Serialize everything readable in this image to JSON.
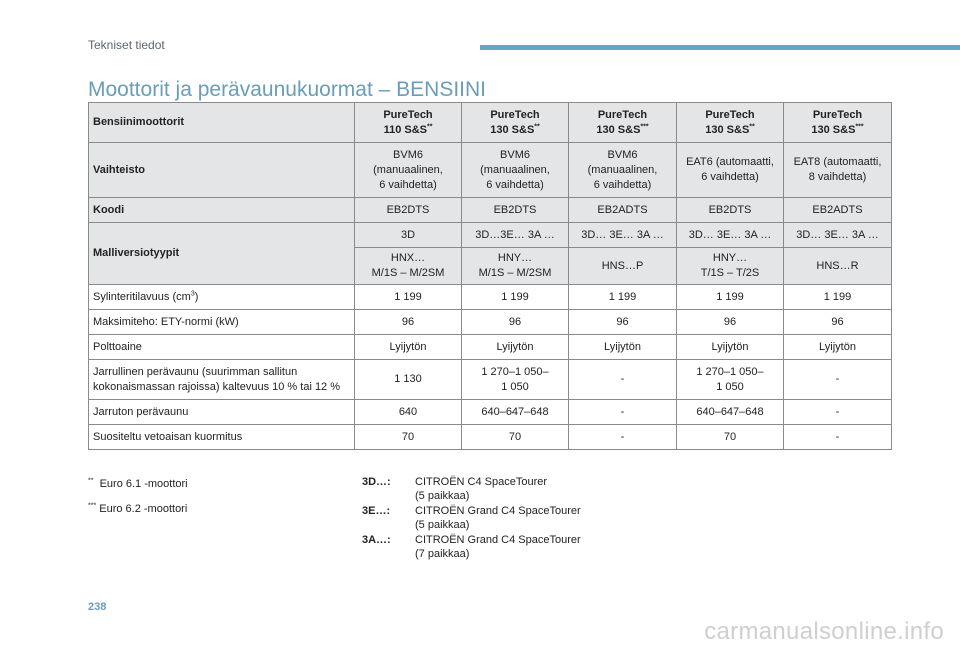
{
  "header": {
    "section": "Tekniset tiedot",
    "title": "Moottorit ja perävaunukuormat – BENSIINI"
  },
  "table": {
    "corner": "Bensiinimoottorit",
    "engines": [
      {
        "line1": "PureTech",
        "line2": "110 S&S",
        "sup": "**"
      },
      {
        "line1": "PureTech",
        "line2": "130 S&S",
        "sup": "**"
      },
      {
        "line1": "PureTech",
        "line2": "130 S&S",
        "sup": "***"
      },
      {
        "line1": "PureTech",
        "line2": "130 S&S",
        "sup": "**"
      },
      {
        "line1": "PureTech",
        "line2": "130 S&S",
        "sup": "***"
      }
    ],
    "gearbox": {
      "label": "Vaihteisto",
      "values": [
        {
          "l1": "BVM6",
          "l2": "(manuaalinen,",
          "l3": "6 vaihdetta)"
        },
        {
          "l1": "BVM6",
          "l2": "(manuaalinen,",
          "l3": "6 vaihdetta)"
        },
        {
          "l1": "BVM6",
          "l2": "(manuaalinen,",
          "l3": "6 vaihdetta)"
        },
        {
          "l1": "EAT6 (automaatti,",
          "l2": "6 vaihdetta)",
          "l3": ""
        },
        {
          "l1": "EAT8 (automaatti,",
          "l2": "8 vaihdetta)",
          "l3": ""
        }
      ]
    },
    "code": {
      "label": "Koodi",
      "values": [
        "EB2DTS",
        "EB2DTS",
        "EB2ADTS",
        "EB2DTS",
        "EB2ADTS"
      ]
    },
    "versions": {
      "label": "Malliversiotyypit",
      "row1": [
        "3D",
        "3D…3E… 3A …",
        "3D… 3E… 3A …",
        "3D… 3E… 3A …",
        "3D… 3E… 3A …"
      ],
      "row2": [
        {
          "l1": "HNX…",
          "l2": "M/1S – M/2SM"
        },
        {
          "l1": "HNY…",
          "l2": "M/1S – M/2SM"
        },
        {
          "l1": "HNS…P",
          "l2": ""
        },
        {
          "l1": "HNY…",
          "l2": "T/1S – T/2S"
        },
        {
          "l1": "HNS…R",
          "l2": ""
        }
      ]
    },
    "displacement": {
      "label": "Sylinteritilavuus (cm",
      "label_sup": "3",
      "label_end": ")",
      "values": [
        "1 199",
        "1 199",
        "1 199",
        "1 199",
        "1 199"
      ]
    },
    "power": {
      "label": "Maksimiteho: ETY-normi (kW)",
      "values": [
        "96",
        "96",
        "96",
        "96",
        "96"
      ]
    },
    "fuel": {
      "label": "Polttoaine",
      "values": [
        "Lyijytön",
        "Lyijytön",
        "Lyijytön",
        "Lyijytön",
        "Lyijytön"
      ]
    },
    "braked": {
      "label1": "Jarrullinen perävaunu (suurimman sallitun",
      "label2": "kokonaismassan rajoissa) kaltevuus 10 % tai 12 %",
      "values": [
        {
          "l1": "1 130",
          "l2": ""
        },
        {
          "l1": "1 270–1 050–",
          "l2": "1 050"
        },
        {
          "l1": "-",
          "l2": ""
        },
        {
          "l1": "1 270–1 050–",
          "l2": "1 050"
        },
        {
          "l1": "-",
          "l2": ""
        }
      ]
    },
    "unbraked": {
      "label": "Jarruton perävaunu",
      "values": [
        "640",
        "640–647–648",
        "-",
        "640–647–648",
        "-"
      ]
    },
    "nose": {
      "label": "Suositeltu vetoaisan kuormitus",
      "values": [
        "70",
        "70",
        "-",
        "70",
        "-"
      ]
    }
  },
  "footnotes": [
    {
      "mark": "**",
      "text": "Euro 6.1 -moottori"
    },
    {
      "mark": "***",
      "text": "Euro 6.2 -moottori"
    }
  ],
  "codes": [
    {
      "key": "3D…:",
      "line1": "CITROËN C4 SpaceTourer",
      "line2": "(5 paikkaa)"
    },
    {
      "key": "3E…:",
      "line1": "CITROËN Grand C4 SpaceTourer",
      "line2": "(5 paikkaa)"
    },
    {
      "key": "3A…:",
      "line1": "CITROËN Grand C4 SpaceTourer",
      "line2": "(7 paikkaa)"
    }
  ],
  "page_number": "238",
  "watermark": "carmanualsonline.info",
  "colors": {
    "accent": "#5fa8c4",
    "title": "#6a9db8",
    "shade": "#e4e5e6"
  }
}
